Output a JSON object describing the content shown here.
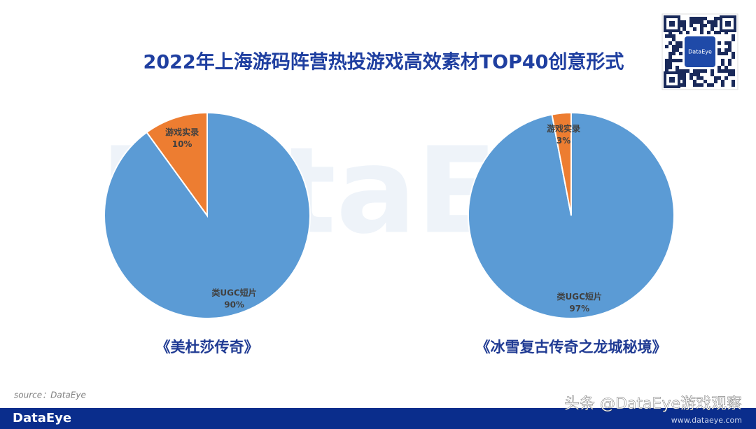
{
  "title": "2022年上海游码阵营热投游戏高效素材TOP40创意形式",
  "background_watermark": "DataEye",
  "qr_label": "DataEye",
  "chart_data": [
    {
      "type": "pie",
      "title": "《美杜莎传奇》",
      "categories": [
        "类UGC短片",
        "游戏实录"
      ],
      "values": [
        90,
        10
      ],
      "value_labels": [
        "90%",
        "10%"
      ],
      "colors": [
        "#5b9bd5",
        "#ed7d31"
      ]
    },
    {
      "type": "pie",
      "title": "《冰雪复古传奇之龙城秘境》",
      "categories": [
        "类UGC短片",
        "游戏实录"
      ],
      "values": [
        97,
        3
      ],
      "value_labels": [
        "97%",
        "3%"
      ],
      "colors": [
        "#5b9bd5",
        "#ed7d31"
      ]
    }
  ],
  "source": "source：DataEye",
  "brand": "DataEye",
  "footer_watermark": "头条 @DataEye游戏观察",
  "url": "www.dataeye.com"
}
